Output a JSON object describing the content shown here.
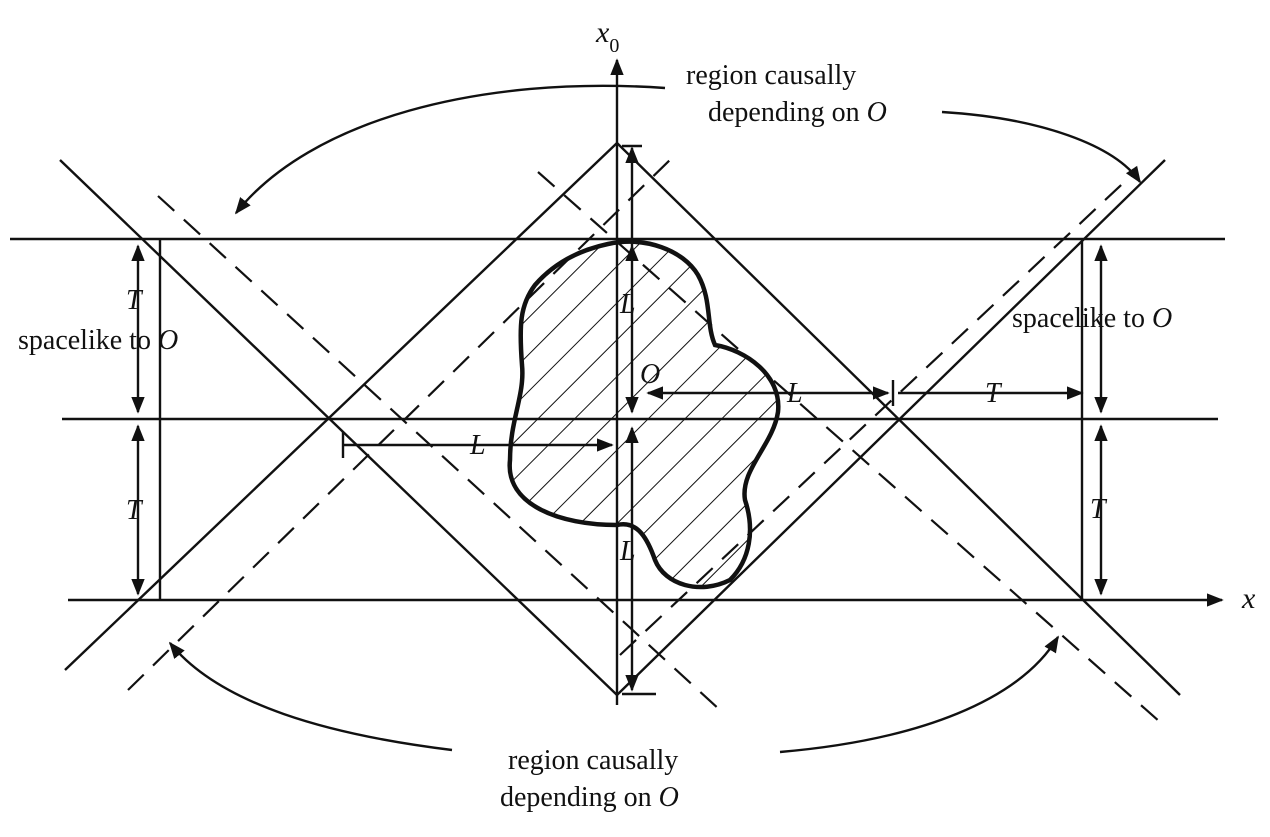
{
  "diagram": {
    "axes": {
      "time_symbol": "x",
      "time_subscript": "0",
      "space_symbol": "x"
    },
    "labels": {
      "top_region_line1": "region causally",
      "top_region_line2_prefix": "depending on ",
      "top_region_var": "O",
      "bottom_region_line1": "region causally",
      "bottom_region_line2_prefix": "depending on ",
      "bottom_region_var": "O",
      "left_spacelike_prefix": "spacelike to ",
      "left_spacelike_var": "O",
      "right_spacelike_prefix": "spacelike to ",
      "right_spacelike_var": "O",
      "origin": "O",
      "length": "L",
      "time_interval": "T"
    }
  }
}
